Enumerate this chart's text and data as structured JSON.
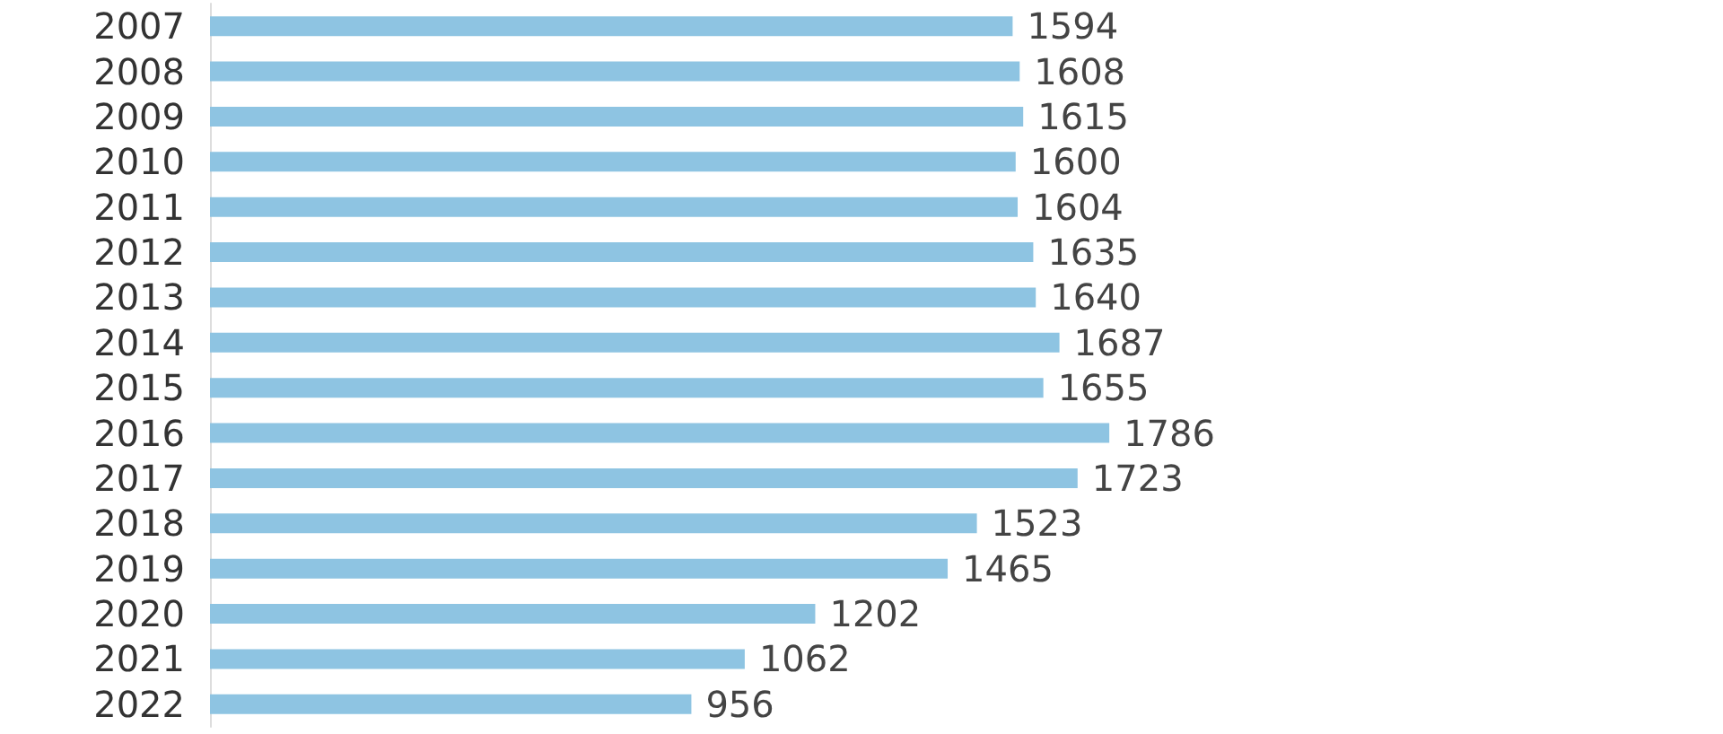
{
  "chart_data": {
    "type": "bar",
    "orientation": "horizontal",
    "categories": [
      "2007",
      "2008",
      "2009",
      "2010",
      "2011",
      "2012",
      "2013",
      "2014",
      "2015",
      "2016",
      "2017",
      "2018",
      "2019",
      "2020",
      "2021",
      "2022"
    ],
    "values": [
      1594,
      1608,
      1615,
      1600,
      1604,
      1635,
      1640,
      1687,
      1655,
      1786,
      1723,
      1523,
      1465,
      1202,
      1062,
      956
    ],
    "color": "#8ec4e2",
    "data_labels": true,
    "tick_labels": "y"
  }
}
